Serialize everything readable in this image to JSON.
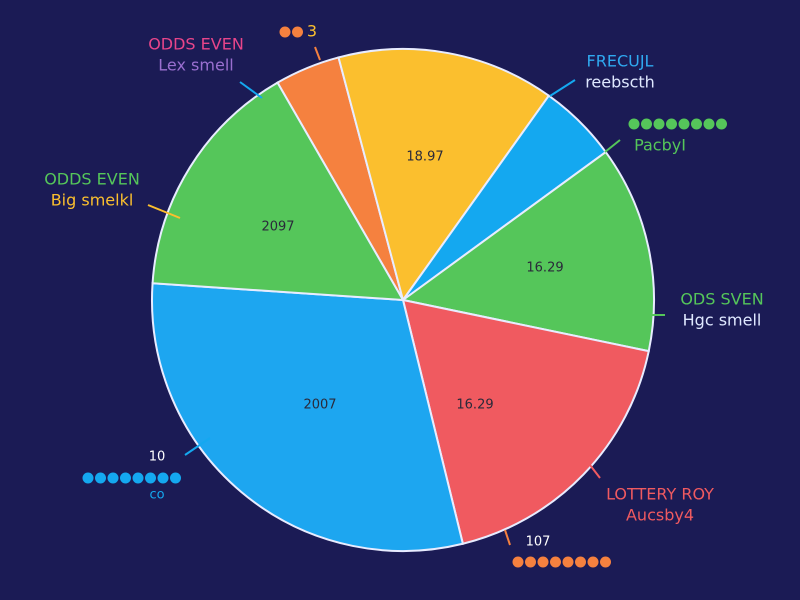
{
  "chart_data": {
    "type": "pie",
    "values": [
      4.2,
      14.0,
      5.1,
      13.3,
      17.9,
      29.9,
      15.6
    ],
    "colors": [
      "#f5813f",
      "#fbbf2e",
      "#14a8f0",
      "#55c65a",
      "#f05a60",
      "#1da6f0",
      "#55c65a"
    ],
    "slice_labels": [
      null,
      "18.97",
      null,
      "16.29",
      "16.29",
      "2007",
      "2097"
    ],
    "callouts": [
      {
        "lines": [
          "ODDS EVEN",
          "Lex smell"
        ],
        "colors": [
          "#e8458a",
          "#9a6fd0"
        ]
      },
      {
        "lines": [
          "3"
        ],
        "colors": [
          "#fbbf2e"
        ]
      },
      {
        "lines": [
          "FRECUJL",
          "reebscth"
        ],
        "colors": [
          "#2fa9f0",
          "#dfe8ff"
        ]
      },
      {
        "lines": [
          "PacbyI"
        ],
        "colors": [
          "#55c65a"
        ]
      },
      {
        "lines": [
          "ODDS EVEN",
          "Big smelkl"
        ],
        "colors": [
          "#55c65a",
          "#fbbf2e"
        ]
      },
      {
        "lines": [
          "ODS SVEN",
          "Hgc smell"
        ],
        "colors": [
          "#55c65a",
          "#dfe8ff"
        ]
      },
      {
        "lines": [
          "LOTTERY ROY",
          "Aucsby4"
        ],
        "colors": [
          "#f05a60",
          "#f05a60"
        ]
      },
      {
        "lines": [
          "107"
        ],
        "colors": [
          "#ffffff"
        ]
      },
      {
        "lines": [
          "10",
          "co"
        ],
        "colors": [
          "#ffffff",
          "#14a8f0"
        ]
      }
    ]
  }
}
